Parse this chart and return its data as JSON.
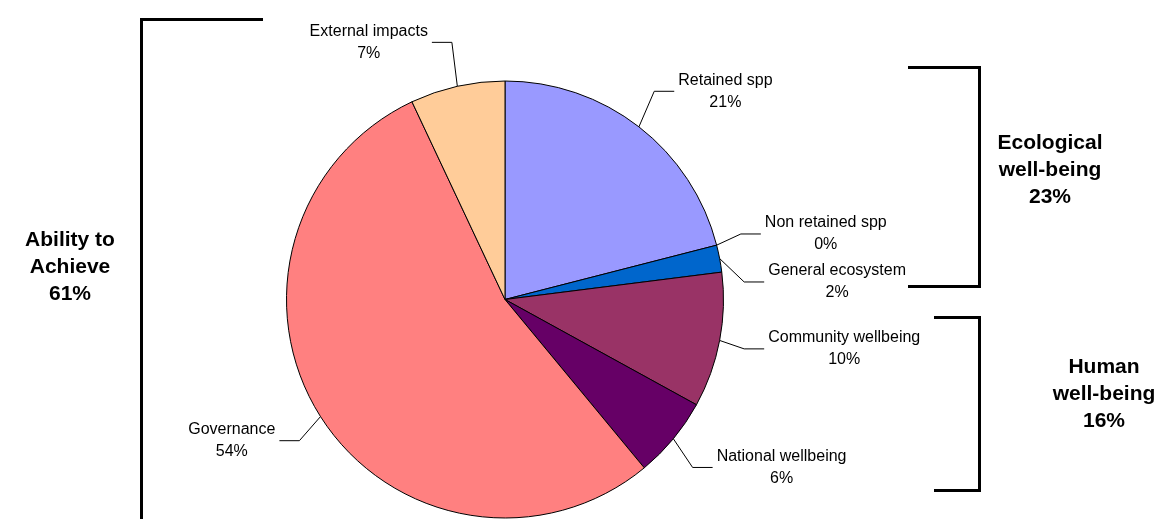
{
  "chart_data": {
    "type": "pie",
    "categories": [
      "Retained spp",
      "Non retained spp",
      "General ecosystem",
      "Community wellbeing",
      "National wellbeing",
      "Governance",
      "External impacts"
    ],
    "values": [
      21,
      0,
      2,
      10,
      6,
      54,
      7
    ],
    "colors": [
      "#9999ff",
      "#3366ff",
      "#0066cc",
      "#993366",
      "#660066",
      "#ff8080",
      "#ffcc99"
    ],
    "value_labels": [
      "21%",
      "0%",
      "2%",
      "10%",
      "6%",
      "54%",
      "7%"
    ],
    "legend": false,
    "annotations": [
      "Ability to Achieve 61%",
      "Ecological well-being 23%",
      "Human well-being 16%"
    ]
  }
}
